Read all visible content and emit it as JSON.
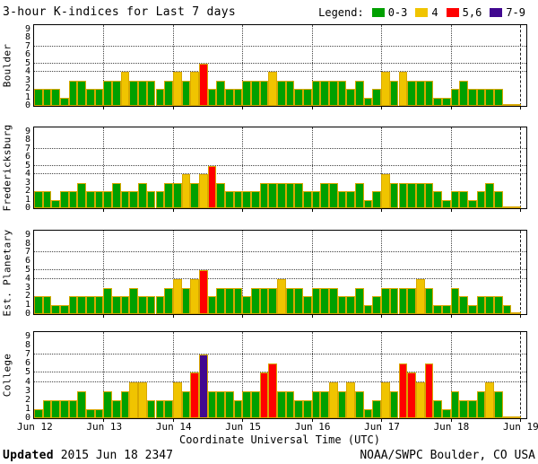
{
  "title": "3-hour K-indices for Last 7 days",
  "legend": {
    "label": "Legend:",
    "items": [
      {
        "label": "0-3",
        "color": "#00A000"
      },
      {
        "label": "4",
        "color": "#F0C400"
      },
      {
        "label": "5,6",
        "color": "#FF0000"
      },
      {
        "label": "7-9",
        "color": "#410890"
      }
    ]
  },
  "colors": {
    "green": "#00A000",
    "yellow": "#F0C400",
    "red": "#FF0000",
    "purple": "#410890",
    "bar_border": "#D8A800"
  },
  "footer": {
    "updated_label": "Updated",
    "updated_value": " 2015 Jun 18 2347",
    "credit": "NOAA/SWPC Boulder, CO USA"
  },
  "chart_data": {
    "type": "bar",
    "title": "3-hour K-indices for Last 7 days",
    "xlabel": "Coordinate Universal Time (UTC)",
    "ylim": [
      0,
      9
    ],
    "y_ticks": [
      "0",
      "1",
      "2",
      "3",
      "4",
      "5",
      "6",
      "7",
      "8",
      "9"
    ],
    "dotted_levels": [
      4,
      5,
      7
    ],
    "x_tick_labels": [
      "Jun 12",
      "Jun 13",
      "Jun 14",
      "Jun 15",
      "Jun 16",
      "Jun 17",
      "Jun 18",
      "Jun 19"
    ],
    "bars_per_day": 8,
    "days": 7,
    "legend_rule": "K 0-3 green, K 4 yellow, K 5-6 red, K 7-9 purple",
    "panels": [
      {
        "station": "Boulder",
        "values": [
          2,
          2,
          2,
          1,
          3,
          3,
          2,
          2,
          3,
          3,
          4,
          3,
          3,
          3,
          2,
          3,
          4,
          3,
          4,
          5,
          2,
          3,
          2,
          2,
          3,
          3,
          3,
          4,
          3,
          3,
          2,
          2,
          3,
          3,
          3,
          3,
          2,
          3,
          1,
          2,
          4,
          3,
          4,
          3,
          3,
          3,
          1,
          1,
          2,
          3,
          2,
          2,
          2,
          2,
          0,
          0
        ]
      },
      {
        "station": "Fredericksburg",
        "values": [
          2,
          2,
          1,
          2,
          2,
          3,
          2,
          2,
          2,
          3,
          2,
          2,
          3,
          2,
          2,
          3,
          3,
          4,
          3,
          4,
          5,
          3,
          2,
          2,
          2,
          2,
          3,
          3,
          3,
          3,
          3,
          2,
          2,
          3,
          3,
          2,
          2,
          3,
          1,
          2,
          4,
          3,
          3,
          3,
          3,
          3,
          2,
          1,
          2,
          2,
          1,
          2,
          3,
          2,
          0,
          0
        ]
      },
      {
        "station": "Est. Planetary",
        "values": [
          2,
          2,
          1,
          1,
          2,
          2,
          2,
          2,
          3,
          2,
          2,
          3,
          2,
          2,
          2,
          3,
          4,
          3,
          4,
          5,
          2,
          3,
          3,
          3,
          2,
          3,
          3,
          3,
          4,
          3,
          3,
          2,
          3,
          3,
          3,
          2,
          2,
          3,
          1,
          2,
          3,
          3,
          3,
          3,
          4,
          3,
          1,
          1,
          3,
          2,
          1,
          2,
          2,
          2,
          1,
          0
        ]
      },
      {
        "station": "College",
        "values": [
          1,
          2,
          2,
          2,
          2,
          3,
          1,
          1,
          3,
          2,
          3,
          4,
          4,
          2,
          2,
          2,
          4,
          3,
          5,
          7,
          3,
          3,
          3,
          2,
          3,
          3,
          5,
          6,
          3,
          3,
          2,
          2,
          3,
          3,
          4,
          3,
          4,
          3,
          1,
          2,
          4,
          3,
          6,
          5,
          4,
          6,
          2,
          1,
          3,
          2,
          2,
          3,
          4,
          3,
          0,
          0
        ]
      }
    ],
    "panel_heights": [
      90,
      90,
      93,
      96
    ],
    "panel_gaps": [
      0,
      22,
      23,
      18
    ]
  }
}
